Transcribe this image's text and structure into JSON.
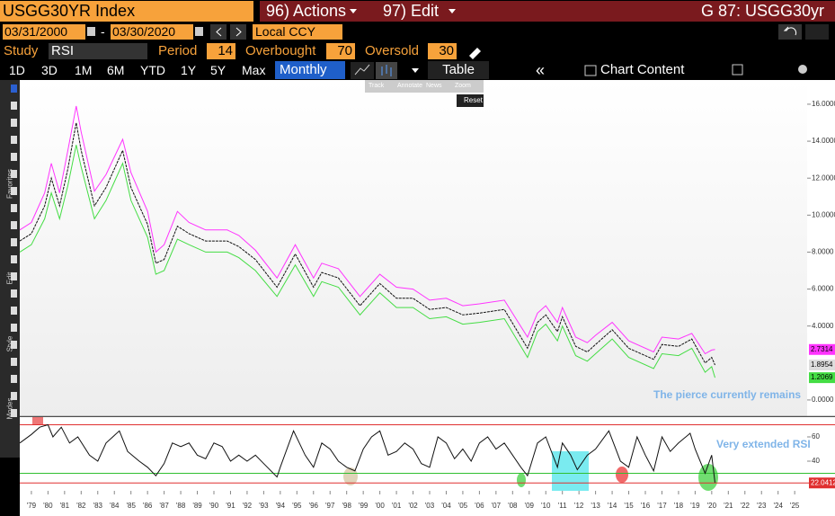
{
  "header": {
    "security": "USGG30YR Index",
    "actions": "96) Actions",
    "edit": "97) Edit",
    "page": "G 87: USGG30yr"
  },
  "date_bar": {
    "start": "03/31/2000",
    "separator": "-",
    "end": "03/30/2020",
    "currency": "Local CCY"
  },
  "study_bar": {
    "study_label": "Study",
    "study": "RSI",
    "period_label": "Period",
    "period": 14,
    "overbought_label": "Overbought",
    "overbought": 70,
    "oversold_label": "Oversold",
    "oversold": 30
  },
  "period_bar": {
    "ranges": [
      "1D",
      "3D",
      "1M",
      "6M",
      "YTD",
      "1Y",
      "5Y",
      "Max"
    ],
    "frequency": "Monthly",
    "table": "Table",
    "collapse": "«",
    "chart_content": "Chart Content"
  },
  "popup": {
    "tools": [
      "Track",
      "Annotate",
      "News",
      "Zoom"
    ],
    "reset": "Reset"
  },
  "side_toolbar": [
    "Favorites",
    "Edit",
    "Style",
    "Modes"
  ],
  "chart_data": [
    {
      "type": "line",
      "x": [
        1978.3,
        1979,
        1979.8,
        1980.2,
        1980.7,
        1981.2,
        1981.7,
        1982,
        1982.8,
        1983.5,
        1984.5,
        1985,
        1986,
        1986.5,
        1987,
        1987.8,
        1988.5,
        1989.5,
        1990.8,
        1991.5,
        1992.5,
        1993.8,
        1994.9,
        1996,
        1996.5,
        1997.5,
        1998.8,
        2000,
        2001,
        2002,
        2003,
        2004,
        2005,
        2006,
        2007.5,
        2008.9,
        2009.5,
        2010,
        2010.7,
        2011,
        2011.8,
        2012.5,
        2013,
        2014,
        2015,
        2016.5,
        2017,
        2018,
        2018.8,
        2019.6,
        2020,
        2020.2
      ],
      "series": [
        {
          "color": "#ff33ff",
          "values": [
            9.2,
            9.6,
            11.2,
            12.8,
            11.2,
            13.5,
            15.9,
            14.5,
            11.3,
            12.2,
            14.1,
            12.3,
            10.2,
            8.0,
            8.4,
            10.2,
            9.6,
            9.2,
            9.2,
            8.9,
            8.1,
            6.6,
            8.4,
            6.6,
            7.4,
            7.1,
            5.6,
            6.8,
            6.1,
            6.0,
            5.4,
            5.5,
            5.1,
            5.2,
            5.4,
            3.4,
            4.7,
            5.1,
            4.2,
            5.0,
            3.4,
            3.1,
            3.5,
            4.2,
            3.2,
            2.6,
            3.4,
            3.3,
            3.6,
            2.5,
            2.7,
            2.7314
          ]
        },
        {
          "color": "#111111",
          "values": [
            8.6,
            9.0,
            10.5,
            12.0,
            10.5,
            12.5,
            15.0,
            13.5,
            10.5,
            11.5,
            13.5,
            11.5,
            9.5,
            7.4,
            7.6,
            9.4,
            9.0,
            8.6,
            8.6,
            8.3,
            7.6,
            6.1,
            7.9,
            6.1,
            6.9,
            6.6,
            5.1,
            6.3,
            5.5,
            5.5,
            4.9,
            5.0,
            4.6,
            4.7,
            4.9,
            2.8,
            4.2,
            4.6,
            3.7,
            4.5,
            2.9,
            2.6,
            3.0,
            3.8,
            2.8,
            2.2,
            3.0,
            2.9,
            3.3,
            2.0,
            2.3,
            1.8954
          ]
        },
        {
          "color": "#44dd44",
          "values": [
            8.0,
            8.4,
            9.8,
            11.2,
            9.8,
            11.6,
            13.8,
            12.6,
            9.8,
            10.8,
            12.8,
            10.8,
            8.8,
            6.8,
            7.0,
            8.7,
            8.4,
            8.0,
            8.0,
            7.7,
            7.0,
            5.6,
            7.3,
            5.6,
            6.4,
            6.1,
            4.6,
            5.8,
            5.0,
            5.0,
            4.4,
            4.5,
            4.1,
            4.2,
            4.4,
            2.3,
            3.7,
            4.1,
            3.2,
            4.0,
            2.4,
            2.1,
            2.5,
            3.3,
            2.3,
            1.7,
            2.5,
            2.4,
            2.8,
            1.5,
            1.8,
            1.2069
          ]
        }
      ],
      "xlim": [
        1978.3,
        2025.75
      ],
      "ylim": [
        -0.83,
        17.31
      ],
      "yticks": [
        {
          "value": 0,
          "label": "0.0000"
        },
        {
          "value": 4,
          "label": "4.0000"
        },
        {
          "value": 6,
          "label": "6.0000"
        },
        {
          "value": 8,
          "label": "8.0000"
        },
        {
          "value": 10,
          "label": "10.0000"
        },
        {
          "value": 12,
          "label": "12.0000"
        },
        {
          "value": 14,
          "label": "14.0000"
        },
        {
          "value": 16,
          "label": "16.0000"
        }
      ],
      "annotation": "The pierce currently remains"
    },
    {
      "type": "line",
      "x": [
        1978.3,
        1979,
        1979.5,
        1980,
        1980.3,
        1980.8,
        1981.3,
        1981.8,
        1982.5,
        1983,
        1983.5,
        1984.3,
        1984.8,
        1985.5,
        1986,
        1986.5,
        1987,
        1987.5,
        1988,
        1988.5,
        1989,
        1989.5,
        1990,
        1990.5,
        1991,
        1991.5,
        1992,
        1992.5,
        1993,
        1993.8,
        1994,
        1994.8,
        1995.5,
        1996,
        1996.5,
        1997,
        1997.5,
        1998,
        1998.5,
        1999,
        1999.5,
        2000,
        2000.5,
        2001,
        2001.5,
        2002,
        2002.5,
        2003,
        2003.5,
        2004,
        2004.5,
        2005,
        2005.5,
        2006,
        2006.5,
        2007,
        2007.5,
        2008,
        2008.5,
        2008.9,
        2009.5,
        2010,
        2010.7,
        2011,
        2011.5,
        2011.9,
        2012.5,
        2013,
        2013.8,
        2014.5,
        2015,
        2015.5,
        2016,
        2016.5,
        2017,
        2017.5,
        2018,
        2018.7,
        2019,
        2019.6,
        2020,
        2020.2
      ],
      "series": [
        {
          "color": "#111111",
          "values": [
            55,
            62,
            68,
            70,
            60,
            68,
            55,
            60,
            45,
            40,
            55,
            65,
            48,
            40,
            35,
            28,
            38,
            55,
            52,
            55,
            45,
            42,
            55,
            52,
            40,
            45,
            40,
            45,
            38,
            27,
            35,
            65,
            45,
            35,
            55,
            50,
            40,
            35,
            32,
            50,
            60,
            65,
            45,
            48,
            55,
            50,
            38,
            35,
            60,
            55,
            42,
            50,
            40,
            55,
            60,
            50,
            55,
            45,
            35,
            28,
            55,
            60,
            35,
            55,
            45,
            33,
            45,
            50,
            65,
            40,
            35,
            60,
            45,
            32,
            60,
            48,
            55,
            63,
            50,
            30,
            45,
            22.0412
          ]
        }
      ],
      "xlim": [
        1978.3,
        2025.75
      ],
      "ylim": [
        16.3,
        76.3
      ],
      "yticks": [
        40,
        60
      ],
      "xticks": [
        {
          "value": 1979,
          "label": "'79"
        },
        {
          "value": 1980,
          "label": "'80"
        },
        {
          "value": 1981,
          "label": "'81"
        },
        {
          "value": 1982,
          "label": "'82"
        },
        {
          "value": 1983,
          "label": "'83"
        },
        {
          "value": 1984,
          "label": "'84"
        },
        {
          "value": 1985,
          "label": "'85"
        },
        {
          "value": 1986,
          "label": "'86"
        },
        {
          "value": 1987,
          "label": "'87"
        },
        {
          "value": 1988,
          "label": "'88"
        },
        {
          "value": 1989,
          "label": "'89"
        },
        {
          "value": 1990,
          "label": "'90"
        },
        {
          "value": 1991,
          "label": "'91"
        },
        {
          "value": 1992,
          "label": "'92"
        },
        {
          "value": 1993,
          "label": "'93"
        },
        {
          "value": 1994,
          "label": "'94"
        },
        {
          "value": 1995,
          "label": "'95"
        },
        {
          "value": 1996,
          "label": "'96"
        },
        {
          "value": 1997,
          "label": "'97"
        },
        {
          "value": 1998,
          "label": "'98"
        },
        {
          "value": 1999,
          "label": "'99"
        },
        {
          "value": 2000,
          "label": "'00"
        },
        {
          "value": 2001,
          "label": "'01"
        },
        {
          "value": 2002,
          "label": "'02"
        },
        {
          "value": 2003,
          "label": "'03"
        },
        {
          "value": 2004,
          "label": "'04"
        },
        {
          "value": 2005,
          "label": "'05"
        },
        {
          "value": 2006,
          "label": "'06"
        },
        {
          "value": 2007,
          "label": "'07"
        },
        {
          "value": 2008,
          "label": "'08"
        },
        {
          "value": 2009,
          "label": "'09"
        },
        {
          "value": 2010,
          "label": "'10"
        },
        {
          "value": 2011,
          "label": "'11"
        },
        {
          "value": 2012,
          "label": "'12"
        },
        {
          "value": 2013,
          "label": "'13"
        },
        {
          "value": 2014,
          "label": "'14"
        },
        {
          "value": 2015,
          "label": "'15"
        },
        {
          "value": 2016,
          "label": "'16"
        },
        {
          "value": 2017,
          "label": "'17"
        },
        {
          "value": 2018,
          "label": "'18"
        },
        {
          "value": 2019,
          "label": "'19"
        },
        {
          "value": 2020,
          "label": "'20"
        },
        {
          "value": 2021,
          "label": "'21"
        },
        {
          "value": 2022,
          "label": "'22"
        },
        {
          "value": 2023,
          "label": "'23"
        },
        {
          "value": 2024,
          "label": "'24"
        },
        {
          "value": 2025,
          "label": "'25"
        }
      ],
      "annotation": "Very extended RSI"
    }
  ]
}
